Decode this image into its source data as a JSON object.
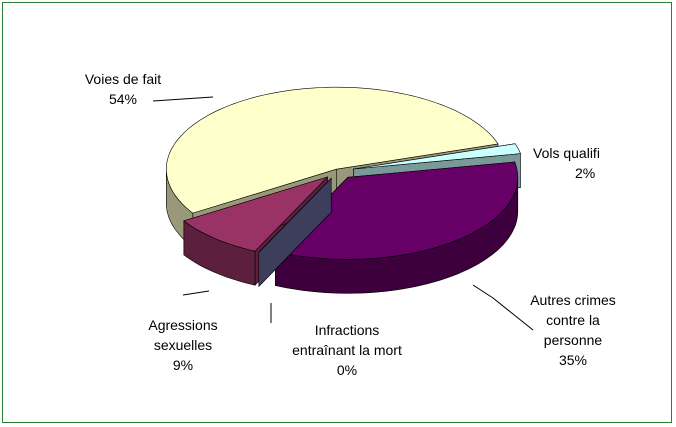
{
  "chart_data": {
    "type": "pie3d",
    "categories": [
      "Vols qualifi",
      "Autres crimes contre la personne",
      "Infractions entraînant la mort",
      "Agressions sexuelles",
      "Voies de fait"
    ],
    "values": [
      2,
      35,
      0,
      9,
      54
    ],
    "value_labels": [
      "2%",
      "35%",
      "0%",
      "9%",
      "54%"
    ],
    "colors": [
      "#ccffff",
      "#660066",
      "#666699",
      "#993366",
      "#ffffcc"
    ]
  }
}
